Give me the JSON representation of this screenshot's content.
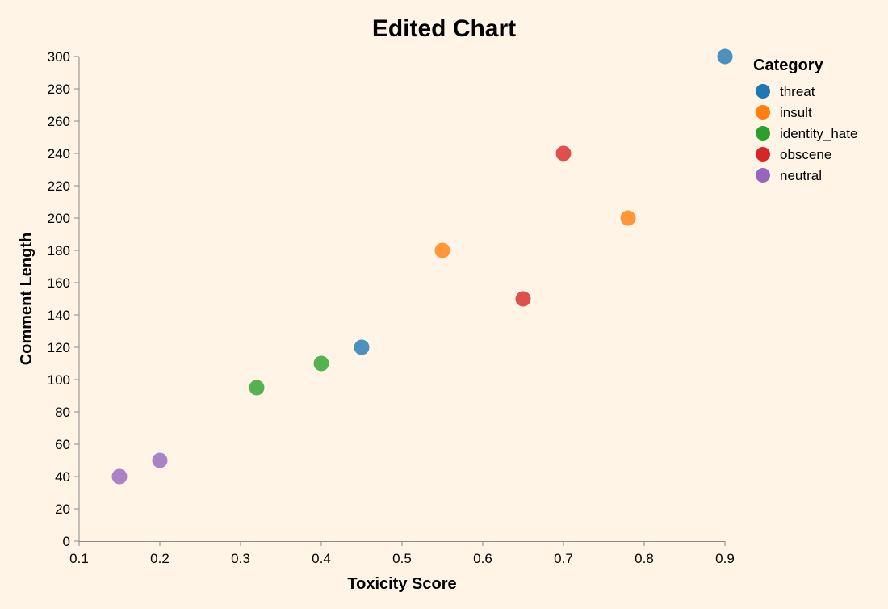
{
  "chart_data": {
    "type": "scatter",
    "title": "Edited Chart",
    "xlabel": "Toxicity Score",
    "ylabel": "Comment Length",
    "xlim": [
      0.1,
      0.9
    ],
    "ylim": [
      0,
      300
    ],
    "x_ticks": [
      0.1,
      0.2,
      0.3,
      0.4,
      0.5,
      0.6,
      0.7,
      0.8,
      0.9
    ],
    "y_ticks": [
      0,
      20,
      40,
      60,
      80,
      100,
      120,
      140,
      160,
      180,
      200,
      220,
      240,
      260,
      280,
      300
    ],
    "grid": false,
    "legend": {
      "title": "Category",
      "placement": "top-right"
    },
    "series": [
      {
        "name": "threat",
        "color": "#1f77b4",
        "points": [
          {
            "x": 0.9,
            "y": 300
          },
          {
            "x": 0.45,
            "y": 120
          }
        ]
      },
      {
        "name": "insult",
        "color": "#ff7f0e",
        "points": [
          {
            "x": 0.55,
            "y": 180
          },
          {
            "x": 0.78,
            "y": 200
          }
        ]
      },
      {
        "name": "identity_hate",
        "color": "#2ca02c",
        "points": [
          {
            "x": 0.32,
            "y": 95
          },
          {
            "x": 0.4,
            "y": 110
          }
        ]
      },
      {
        "name": "obscene",
        "color": "#d62728",
        "points": [
          {
            "x": 0.7,
            "y": 240
          },
          {
            "x": 0.65,
            "y": 150
          }
        ]
      },
      {
        "name": "neutral",
        "color": "#9467bd",
        "points": [
          {
            "x": 0.15,
            "y": 40
          },
          {
            "x": 0.2,
            "y": 50
          }
        ]
      }
    ]
  }
}
